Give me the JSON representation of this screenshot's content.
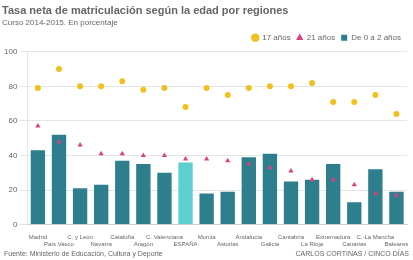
{
  "chart_data": {
    "type": "bar",
    "title": "Tasa neta de matriculación según la edad por regiones",
    "subtitle": "Curso 2014-2015. En porcentaje",
    "annotations": [
      "Fuente: Ministerio de Educación, Cultura y Deporte",
      "CARLOS CORTINAS / CINCO DÍAS"
    ],
    "categories": [
      "Madrid",
      "País Vasco",
      "C. y León",
      "Navarra",
      "Cataluña",
      "Aragón",
      "C. Valenciana",
      "ESPAÑA",
      "Murcia",
      "Asturias",
      "Andalucía",
      "Galicia",
      "Cantabria",
      "La Rioja",
      "Extremadura",
      "Canarias",
      "C.-La Mancha",
      "Baleares"
    ],
    "series": [
      {
        "name": "De 0 a 2 años",
        "type": "bar",
        "color": "#2e7f8e",
        "colors": [
          "#2e7f8e",
          "#2e7f8e",
          "#2e7f8e",
          "#2e7f8e",
          "#2e7f8e",
          "#2e7f8e",
          "#2e7f8e",
          "#5ecfcf",
          "#2e7f8e",
          "#2e7f8e",
          "#2e7f8e",
          "#2e7f8e",
          "#2e7f8e",
          "#2e7f8e",
          "#2e7f8e",
          "#2e7f8e",
          "#2e7f8e",
          "#2e7f8e"
        ],
        "values": [
          43,
          52,
          21,
          23,
          37,
          35,
          30,
          36,
          18,
          19,
          39,
          41,
          25,
          26,
          35,
          13,
          32,
          19
        ]
      },
      {
        "name": "17 años",
        "type": "scatter",
        "color": "#f0c020",
        "marker": "circle",
        "values": [
          79,
          90,
          80,
          80,
          83,
          78,
          79,
          68,
          79,
          75,
          79,
          80,
          80,
          82,
          71,
          71,
          75,
          64
        ]
      },
      {
        "name": "21 años",
        "type": "scatter",
        "color": "#d94080",
        "marker": "triangle",
        "values": [
          57,
          48,
          46,
          41,
          41,
          40,
          40,
          38,
          38,
          37,
          35,
          33,
          31,
          26,
          26,
          23,
          18,
          17
        ]
      }
    ],
    "ylim": [
      0,
      100
    ],
    "yticks": [
      0,
      20,
      40,
      60,
      80,
      100
    ],
    "grid": true,
    "legend": "top"
  }
}
